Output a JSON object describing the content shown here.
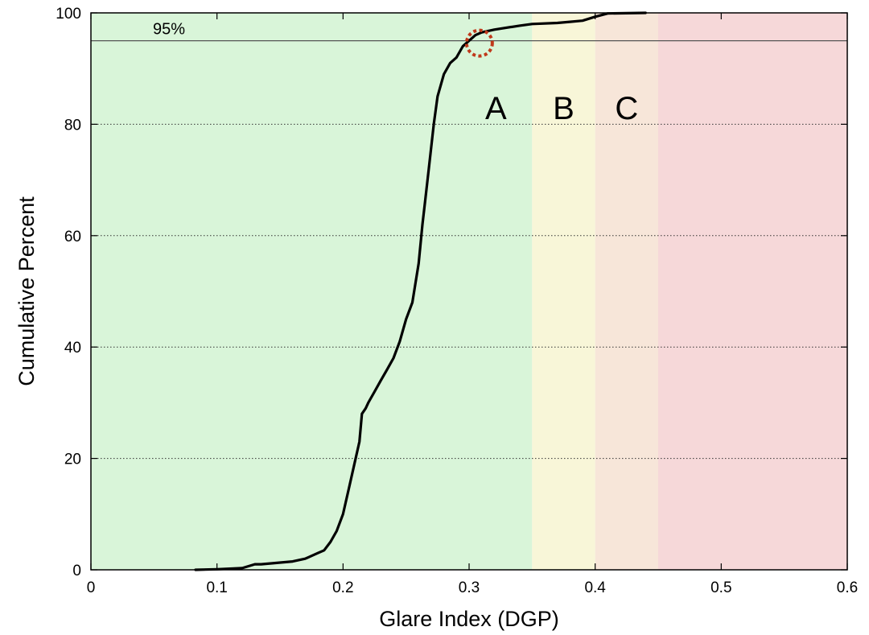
{
  "chart_data": {
    "type": "line",
    "title": "",
    "xlabel": "Glare Index (DGP)",
    "ylabel": "Cumulative Percent",
    "xlim": [
      0,
      0.6
    ],
    "ylim": [
      0,
      100
    ],
    "x_ticks": [
      "0",
      "0.1",
      "0.2",
      "0.3",
      "0.4",
      "0.5",
      "0.6"
    ],
    "y_ticks": [
      "0",
      "20",
      "40",
      "60",
      "80",
      "100"
    ],
    "grid": "horizontal dotted",
    "zones": [
      {
        "label": "A",
        "x_start": 0.0,
        "x_end": 0.35,
        "color": "#d9f5d9"
      },
      {
        "label": "B",
        "x_start": 0.35,
        "x_end": 0.4,
        "color": "#f8f6d8"
      },
      {
        "label": "C",
        "x_start": 0.4,
        "x_end": 0.45,
        "color": "#f7e6d9"
      },
      {
        "label": "",
        "x_start": 0.45,
        "x_end": 0.6,
        "color": "#f6d8d9"
      }
    ],
    "reference_line": {
      "y": 95,
      "label": "95%"
    },
    "highlight": {
      "x": 0.305,
      "y": 95,
      "color": "#c0391b"
    },
    "series": [
      {
        "color": "#000000",
        "x": [
          0.083,
          0.1,
          0.12,
          0.13,
          0.135,
          0.16,
          0.17,
          0.175,
          0.18,
          0.185,
          0.19,
          0.195,
          0.2,
          0.205,
          0.21,
          0.213,
          0.215,
          0.218,
          0.22,
          0.225,
          0.23,
          0.235,
          0.24,
          0.245,
          0.25,
          0.255,
          0.26,
          0.263,
          0.265,
          0.268,
          0.27,
          0.272,
          0.275,
          0.28,
          0.285,
          0.29,
          0.295,
          0.3,
          0.305,
          0.31,
          0.32,
          0.34,
          0.35,
          0.37,
          0.38,
          0.39,
          0.4,
          0.41,
          0.44
        ],
        "y": [
          0,
          0.1,
          0.3,
          1,
          1,
          1.5,
          2,
          2.5,
          3,
          3.5,
          5,
          7,
          10,
          15,
          20,
          23,
          28,
          29,
          30,
          32,
          34,
          36,
          38,
          41,
          45,
          48,
          55,
          62,
          66,
          72,
          76,
          80,
          85,
          89,
          91,
          92,
          94,
          95,
          96,
          96.5,
          97,
          97.7,
          98,
          98.2,
          98.4,
          98.6,
          99.3,
          99.9,
          100
        ]
      }
    ]
  }
}
